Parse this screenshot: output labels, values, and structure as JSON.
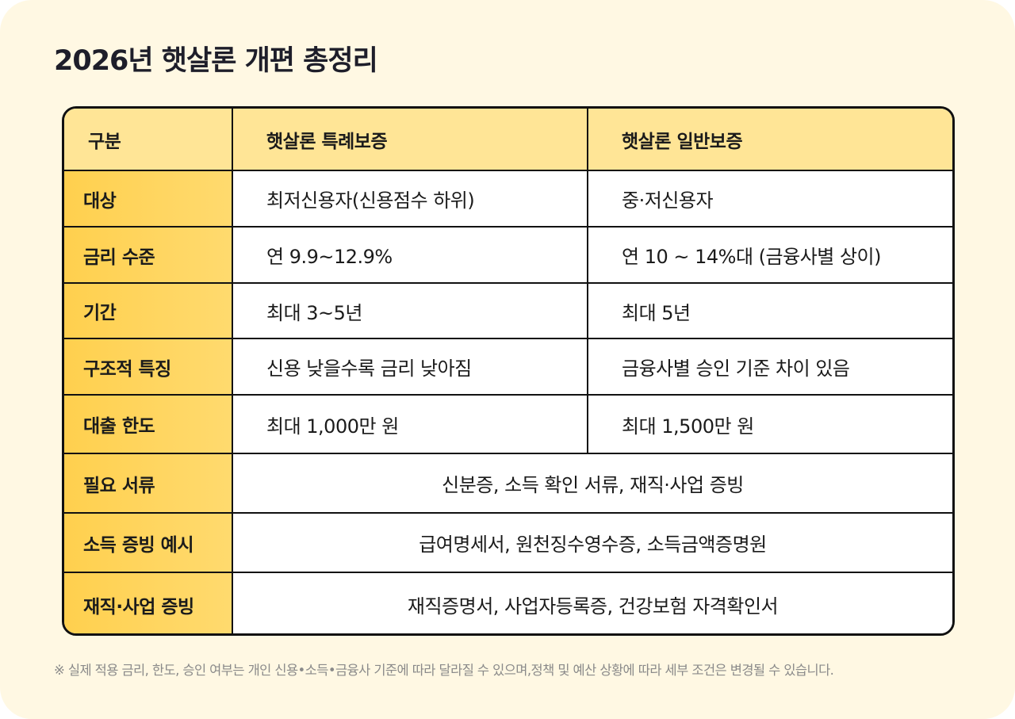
{
  "title": "2026년 햇살론 개편 총정리",
  "table": {
    "headers": [
      "구분",
      "햇살론 특례보증",
      "햇살론 일반보증"
    ],
    "rows": [
      {
        "label": "대상",
        "special": "최저신용자(신용점수 하위)",
        "general": "중·저신용자"
      },
      {
        "label": "금리 수준",
        "special": "연 9.9~12.9%",
        "general": "연 10 ~ 14%대 (금융사별 상이)"
      },
      {
        "label": "기간",
        "special": "최대 3~5년",
        "general": "최대 5년"
      },
      {
        "label": "구조적 특징",
        "special": "신용 낮을수록 금리 낮아짐",
        "general": "금융사별 승인 기준 차이 있음"
      },
      {
        "label": "대출 한도",
        "special": "최대 1,000만 원",
        "general": "최대 1,500만 원"
      }
    ],
    "span_rows": [
      {
        "label": "필요 서류",
        "value": "신분증, 소득 확인 서류, 재직·사업 증빙"
      },
      {
        "label": "소득 증빙 예시",
        "value": "급여명세서, 원천징수영수증, 소득금액증명원"
      },
      {
        "label": "재직·사업 증빙",
        "value": "재직증명서, 사업자등록증, 건강보험 자격확인서"
      }
    ]
  },
  "footnote": "※ 실제 적용 금리, 한도, 승인 여부는 개인 신용•소득•금융사 기준에 따라 달라질 수 있으며,정책 및 예산 상황에 따라 세부 조건은 변경될 수 있습니다.",
  "colors": {
    "background": "#fff8e3",
    "header": "#ffe596",
    "label_column": "#ffd04e",
    "border": "#111111"
  }
}
